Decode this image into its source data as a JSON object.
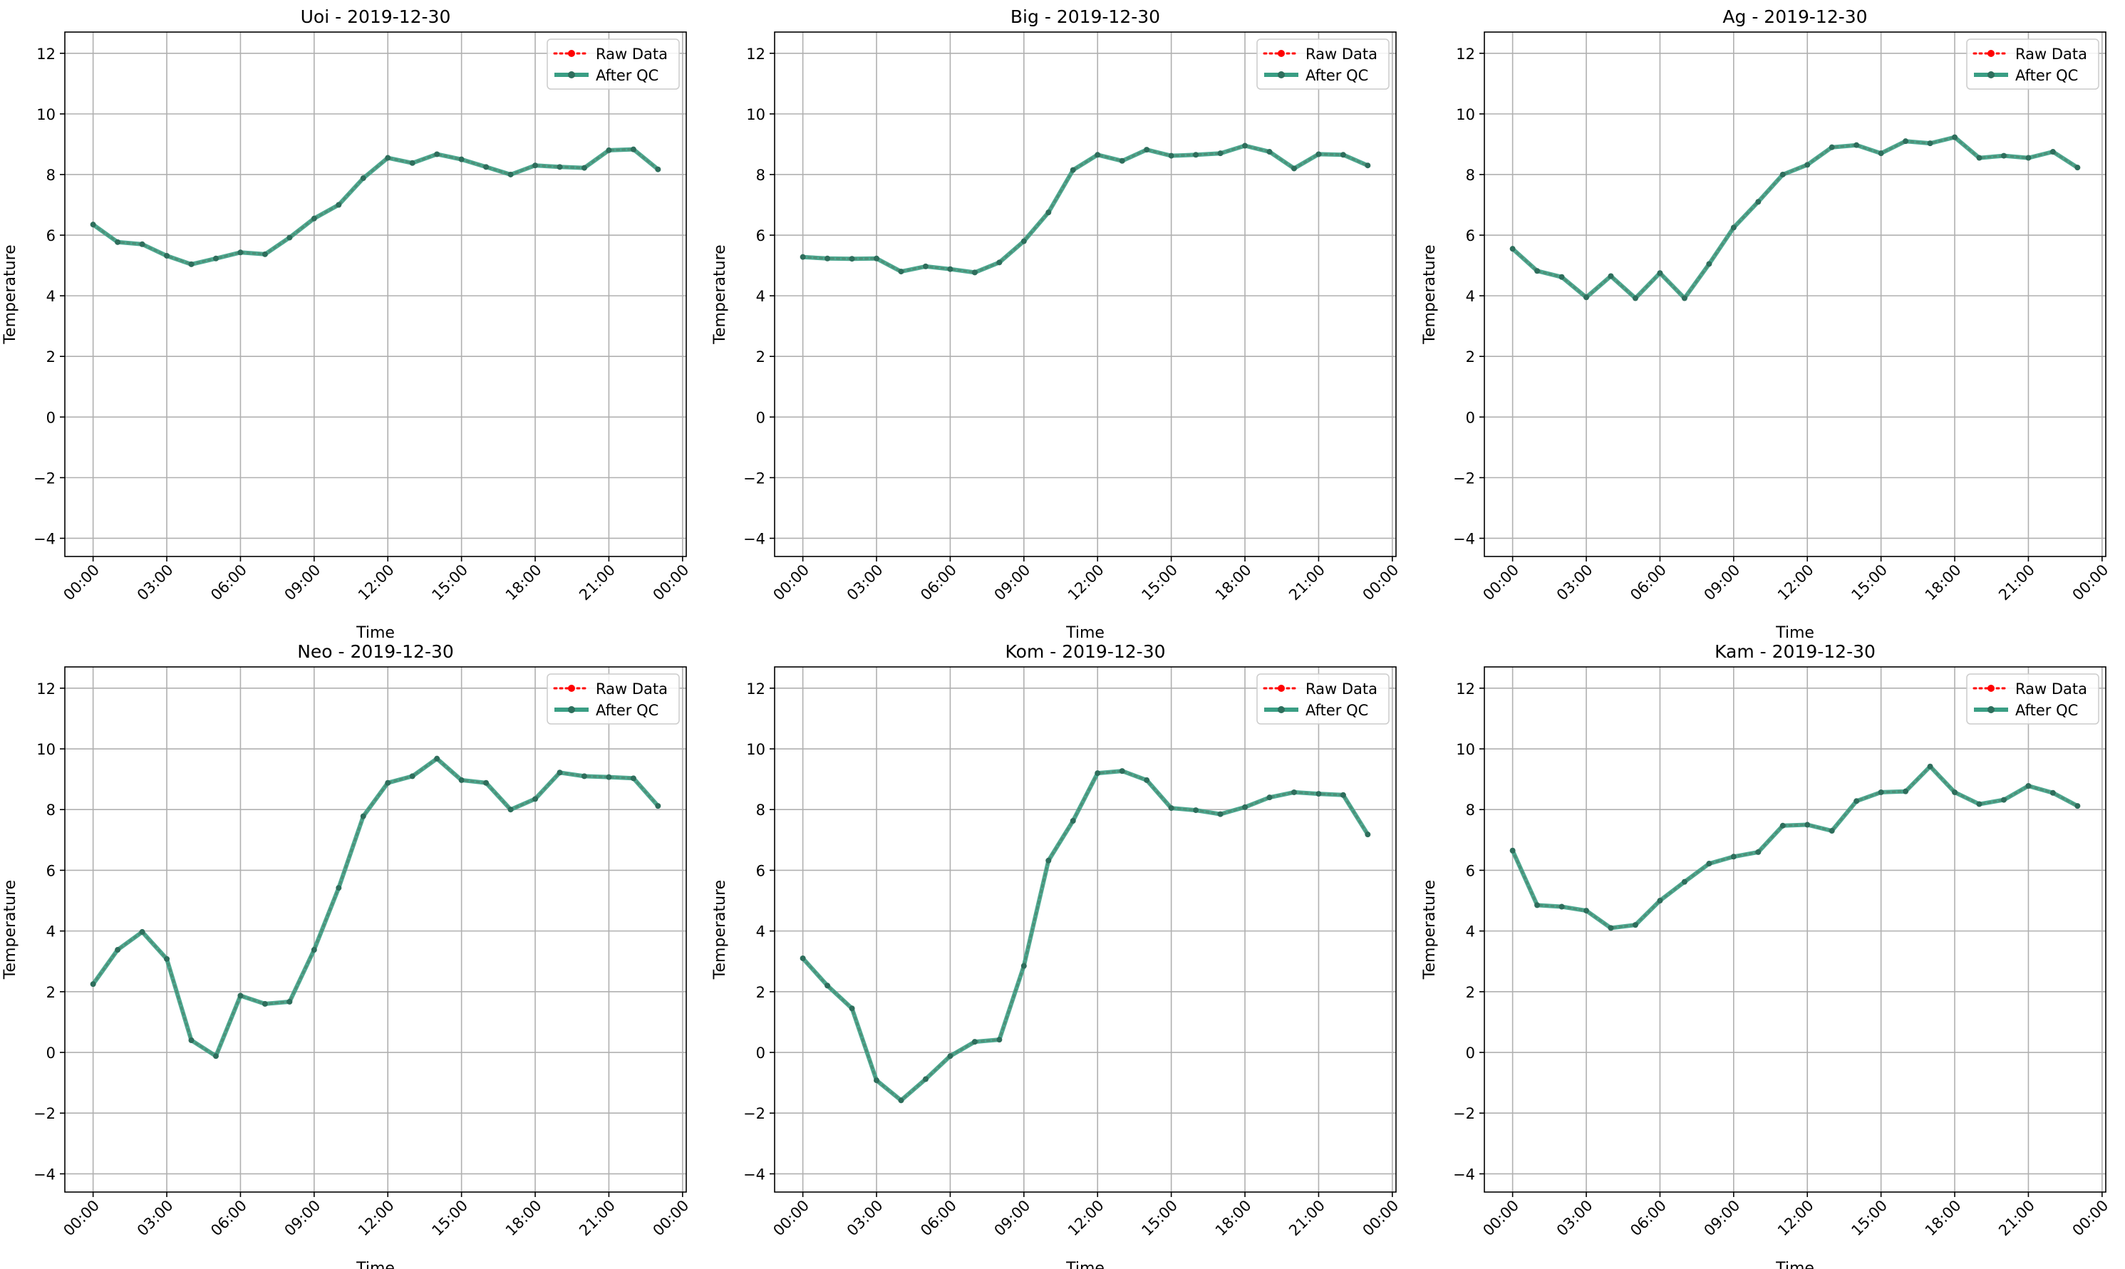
{
  "figure": {
    "x_ticks": [
      "00:00",
      "03:00",
      "06:00",
      "09:00",
      "12:00",
      "15:00",
      "18:00",
      "21:00",
      "00:00"
    ],
    "legend": {
      "raw": "Raw Data",
      "qc": "After QC",
      "placement": "upper right"
    },
    "colors": {
      "raw": "#ff0000",
      "qc": "#3a9e84",
      "qc_points": "#2e6e5c",
      "grid": "#b0b0b0"
    }
  },
  "chart_data": [
    {
      "type": "line",
      "title": "Uoi - 2019-12-30",
      "xlabel": "Time",
      "ylabel": "Temperature",
      "xlim": [
        -1.15,
        24.15
      ],
      "ylim": [
        -4.6,
        12.7
      ],
      "yticks": [
        -4,
        -2,
        0,
        2,
        4,
        6,
        8,
        10,
        12
      ],
      "grid": true,
      "legend": "upper right",
      "x": [
        "00:00",
        "01:00",
        "02:00",
        "03:00",
        "04:00",
        "05:00",
        "06:00",
        "07:00",
        "08:00",
        "09:00",
        "10:00",
        "11:00",
        "12:00",
        "13:00",
        "14:00",
        "15:00",
        "16:00",
        "17:00",
        "18:00",
        "19:00",
        "20:00",
        "21:00",
        "22:00",
        "23:00"
      ],
      "series": [
        {
          "name": "Raw Data",
          "values": [
            6.35,
            5.77,
            5.7,
            5.32,
            5.04,
            5.23,
            5.43,
            5.37,
            5.92,
            6.55,
            7.0,
            7.88,
            8.55,
            8.38,
            8.67,
            8.5,
            8.25,
            8.0,
            8.3,
            8.25,
            8.22,
            8.8,
            8.83,
            8.17
          ]
        },
        {
          "name": "After QC",
          "values": [
            6.35,
            5.77,
            5.7,
            5.32,
            5.04,
            5.23,
            5.43,
            5.37,
            5.92,
            6.55,
            7.0,
            7.88,
            8.55,
            8.38,
            8.67,
            8.5,
            8.25,
            8.0,
            8.3,
            8.25,
            8.22,
            8.8,
            8.83,
            8.17
          ]
        }
      ]
    },
    {
      "type": "line",
      "title": "Big - 2019-12-30",
      "xlabel": "Time",
      "ylabel": "Temperature",
      "xlim": [
        -1.15,
        24.15
      ],
      "ylim": [
        -4.6,
        12.7
      ],
      "yticks": [
        -4,
        -2,
        0,
        2,
        4,
        6,
        8,
        10,
        12
      ],
      "grid": true,
      "legend": "upper right",
      "x": [
        "00:00",
        "01:00",
        "02:00",
        "03:00",
        "04:00",
        "05:00",
        "06:00",
        "07:00",
        "08:00",
        "09:00",
        "10:00",
        "11:00",
        "12:00",
        "13:00",
        "14:00",
        "15:00",
        "16:00",
        "17:00",
        "18:00",
        "19:00",
        "20:00",
        "21:00",
        "22:00",
        "23:00"
      ],
      "series": [
        {
          "name": "Raw Data",
          "values": [
            5.28,
            5.23,
            5.22,
            5.23,
            4.8,
            4.97,
            4.88,
            4.77,
            5.1,
            5.8,
            6.75,
            8.15,
            8.65,
            8.45,
            8.82,
            8.62,
            8.65,
            8.7,
            8.95,
            8.75,
            8.2,
            8.67,
            8.65,
            8.3
          ]
        },
        {
          "name": "After QC",
          "values": [
            5.28,
            5.23,
            5.22,
            5.23,
            4.8,
            4.97,
            4.88,
            4.77,
            5.1,
            5.8,
            6.75,
            8.15,
            8.65,
            8.45,
            8.82,
            8.62,
            8.65,
            8.7,
            8.95,
            8.75,
            8.2,
            8.67,
            8.65,
            8.3
          ]
        }
      ]
    },
    {
      "type": "line",
      "title": "Ag - 2019-12-30",
      "xlabel": "Time",
      "ylabel": "Temperature",
      "xlim": [
        -1.15,
        24.15
      ],
      "ylim": [
        -4.6,
        12.7
      ],
      "yticks": [
        -4,
        -2,
        0,
        2,
        4,
        6,
        8,
        10,
        12
      ],
      "grid": true,
      "legend": "upper right",
      "x": [
        "00:00",
        "01:00",
        "02:00",
        "03:00",
        "04:00",
        "05:00",
        "06:00",
        "07:00",
        "08:00",
        "09:00",
        "10:00",
        "11:00",
        "12:00",
        "13:00",
        "14:00",
        "15:00",
        "16:00",
        "17:00",
        "18:00",
        "19:00",
        "20:00",
        "21:00",
        "22:00",
        "23:00"
      ],
      "series": [
        {
          "name": "Raw Data",
          "values": [
            5.55,
            4.82,
            4.62,
            3.95,
            4.65,
            3.92,
            4.75,
            3.92,
            5.05,
            6.25,
            7.1,
            8.0,
            8.32,
            8.9,
            8.97,
            8.7,
            9.1,
            9.03,
            9.23,
            8.55,
            8.62,
            8.55,
            8.75,
            8.23
          ]
        },
        {
          "name": "After QC",
          "values": [
            5.55,
            4.82,
            4.62,
            3.95,
            4.65,
            3.92,
            4.75,
            3.92,
            5.05,
            6.25,
            7.1,
            8.0,
            8.32,
            8.9,
            8.97,
            8.7,
            9.1,
            9.03,
            9.23,
            8.55,
            8.62,
            8.55,
            8.75,
            8.23
          ]
        }
      ]
    },
    {
      "type": "line",
      "title": "Neo - 2019-12-30",
      "xlabel": "Time",
      "ylabel": "Temperature",
      "xlim": [
        -1.15,
        24.15
      ],
      "ylim": [
        -4.6,
        12.7
      ],
      "yticks": [
        -4,
        -2,
        0,
        2,
        4,
        6,
        8,
        10,
        12
      ],
      "grid": true,
      "legend": "upper right",
      "x": [
        "00:00",
        "01:00",
        "02:00",
        "03:00",
        "04:00",
        "05:00",
        "06:00",
        "07:00",
        "08:00",
        "09:00",
        "10:00",
        "11:00",
        "12:00",
        "13:00",
        "14:00",
        "15:00",
        "16:00",
        "17:00",
        "18:00",
        "19:00",
        "20:00",
        "21:00",
        "22:00",
        "23:00"
      ],
      "series": [
        {
          "name": "Raw Data",
          "values": [
            2.25,
            3.38,
            3.97,
            3.08,
            0.4,
            -0.12,
            1.87,
            1.6,
            1.67,
            3.38,
            5.42,
            7.78,
            8.88,
            9.1,
            9.68,
            8.97,
            8.88,
            8.0,
            8.35,
            9.22,
            9.1,
            9.07,
            9.03,
            8.12
          ]
        },
        {
          "name": "After QC",
          "values": [
            2.25,
            3.38,
            3.97,
            3.08,
            0.4,
            -0.12,
            1.87,
            1.6,
            1.67,
            3.38,
            5.42,
            7.78,
            8.88,
            9.1,
            9.68,
            8.97,
            8.88,
            8.0,
            8.35,
            9.22,
            9.1,
            9.07,
            9.03,
            8.12
          ]
        }
      ]
    },
    {
      "type": "line",
      "title": "Kom - 2019-12-30",
      "xlabel": "Time",
      "ylabel": "Temperature",
      "xlim": [
        -1.15,
        24.15
      ],
      "ylim": [
        -4.6,
        12.7
      ],
      "yticks": [
        -4,
        -2,
        0,
        2,
        4,
        6,
        8,
        10,
        12
      ],
      "grid": true,
      "legend": "upper right",
      "x": [
        "00:00",
        "01:00",
        "02:00",
        "03:00",
        "04:00",
        "05:00",
        "06:00",
        "07:00",
        "08:00",
        "09:00",
        "10:00",
        "11:00",
        "12:00",
        "13:00",
        "14:00",
        "15:00",
        "16:00",
        "17:00",
        "18:00",
        "19:00",
        "20:00",
        "21:00",
        "22:00",
        "23:00"
      ],
      "series": [
        {
          "name": "Raw Data",
          "values": [
            3.1,
            2.2,
            1.45,
            -0.92,
            -1.58,
            -0.88,
            -0.12,
            0.35,
            0.42,
            2.85,
            6.32,
            7.63,
            9.2,
            9.27,
            8.97,
            8.05,
            7.98,
            7.85,
            8.08,
            8.4,
            8.57,
            8.52,
            8.48,
            7.18
          ]
        },
        {
          "name": "After QC",
          "values": [
            3.1,
            2.2,
            1.45,
            -0.92,
            -1.58,
            -0.88,
            -0.12,
            0.35,
            0.42,
            2.85,
            6.32,
            7.63,
            9.2,
            9.27,
            8.97,
            8.05,
            7.98,
            7.85,
            8.08,
            8.4,
            8.57,
            8.52,
            8.48,
            7.18
          ]
        }
      ]
    },
    {
      "type": "line",
      "title": "Kam - 2019-12-30",
      "xlabel": "Time",
      "ylabel": "Temperature",
      "xlim": [
        -1.15,
        24.15
      ],
      "ylim": [
        -4.6,
        12.7
      ],
      "yticks": [
        -4,
        -2,
        0,
        2,
        4,
        6,
        8,
        10,
        12
      ],
      "grid": true,
      "legend": "upper right",
      "x": [
        "00:00",
        "01:00",
        "02:00",
        "03:00",
        "04:00",
        "05:00",
        "06:00",
        "07:00",
        "08:00",
        "09:00",
        "10:00",
        "11:00",
        "12:00",
        "13:00",
        "14:00",
        "15:00",
        "16:00",
        "17:00",
        "18:00",
        "19:00",
        "20:00",
        "21:00",
        "22:00",
        "23:00"
      ],
      "series": [
        {
          "name": "Raw Data",
          "values": [
            6.65,
            4.85,
            4.8,
            4.67,
            4.1,
            4.2,
            5.0,
            5.62,
            6.22,
            6.45,
            6.6,
            7.47,
            7.5,
            7.3,
            8.28,
            8.57,
            8.6,
            9.42,
            8.57,
            8.18,
            8.32,
            8.78,
            8.55,
            8.12
          ]
        },
        {
          "name": "After QC",
          "values": [
            6.65,
            4.85,
            4.8,
            4.67,
            4.1,
            4.2,
            5.0,
            5.62,
            6.22,
            6.45,
            6.6,
            7.47,
            7.5,
            7.3,
            8.28,
            8.57,
            8.6,
            9.42,
            8.57,
            8.18,
            8.32,
            8.78,
            8.55,
            8.12
          ]
        }
      ]
    }
  ]
}
